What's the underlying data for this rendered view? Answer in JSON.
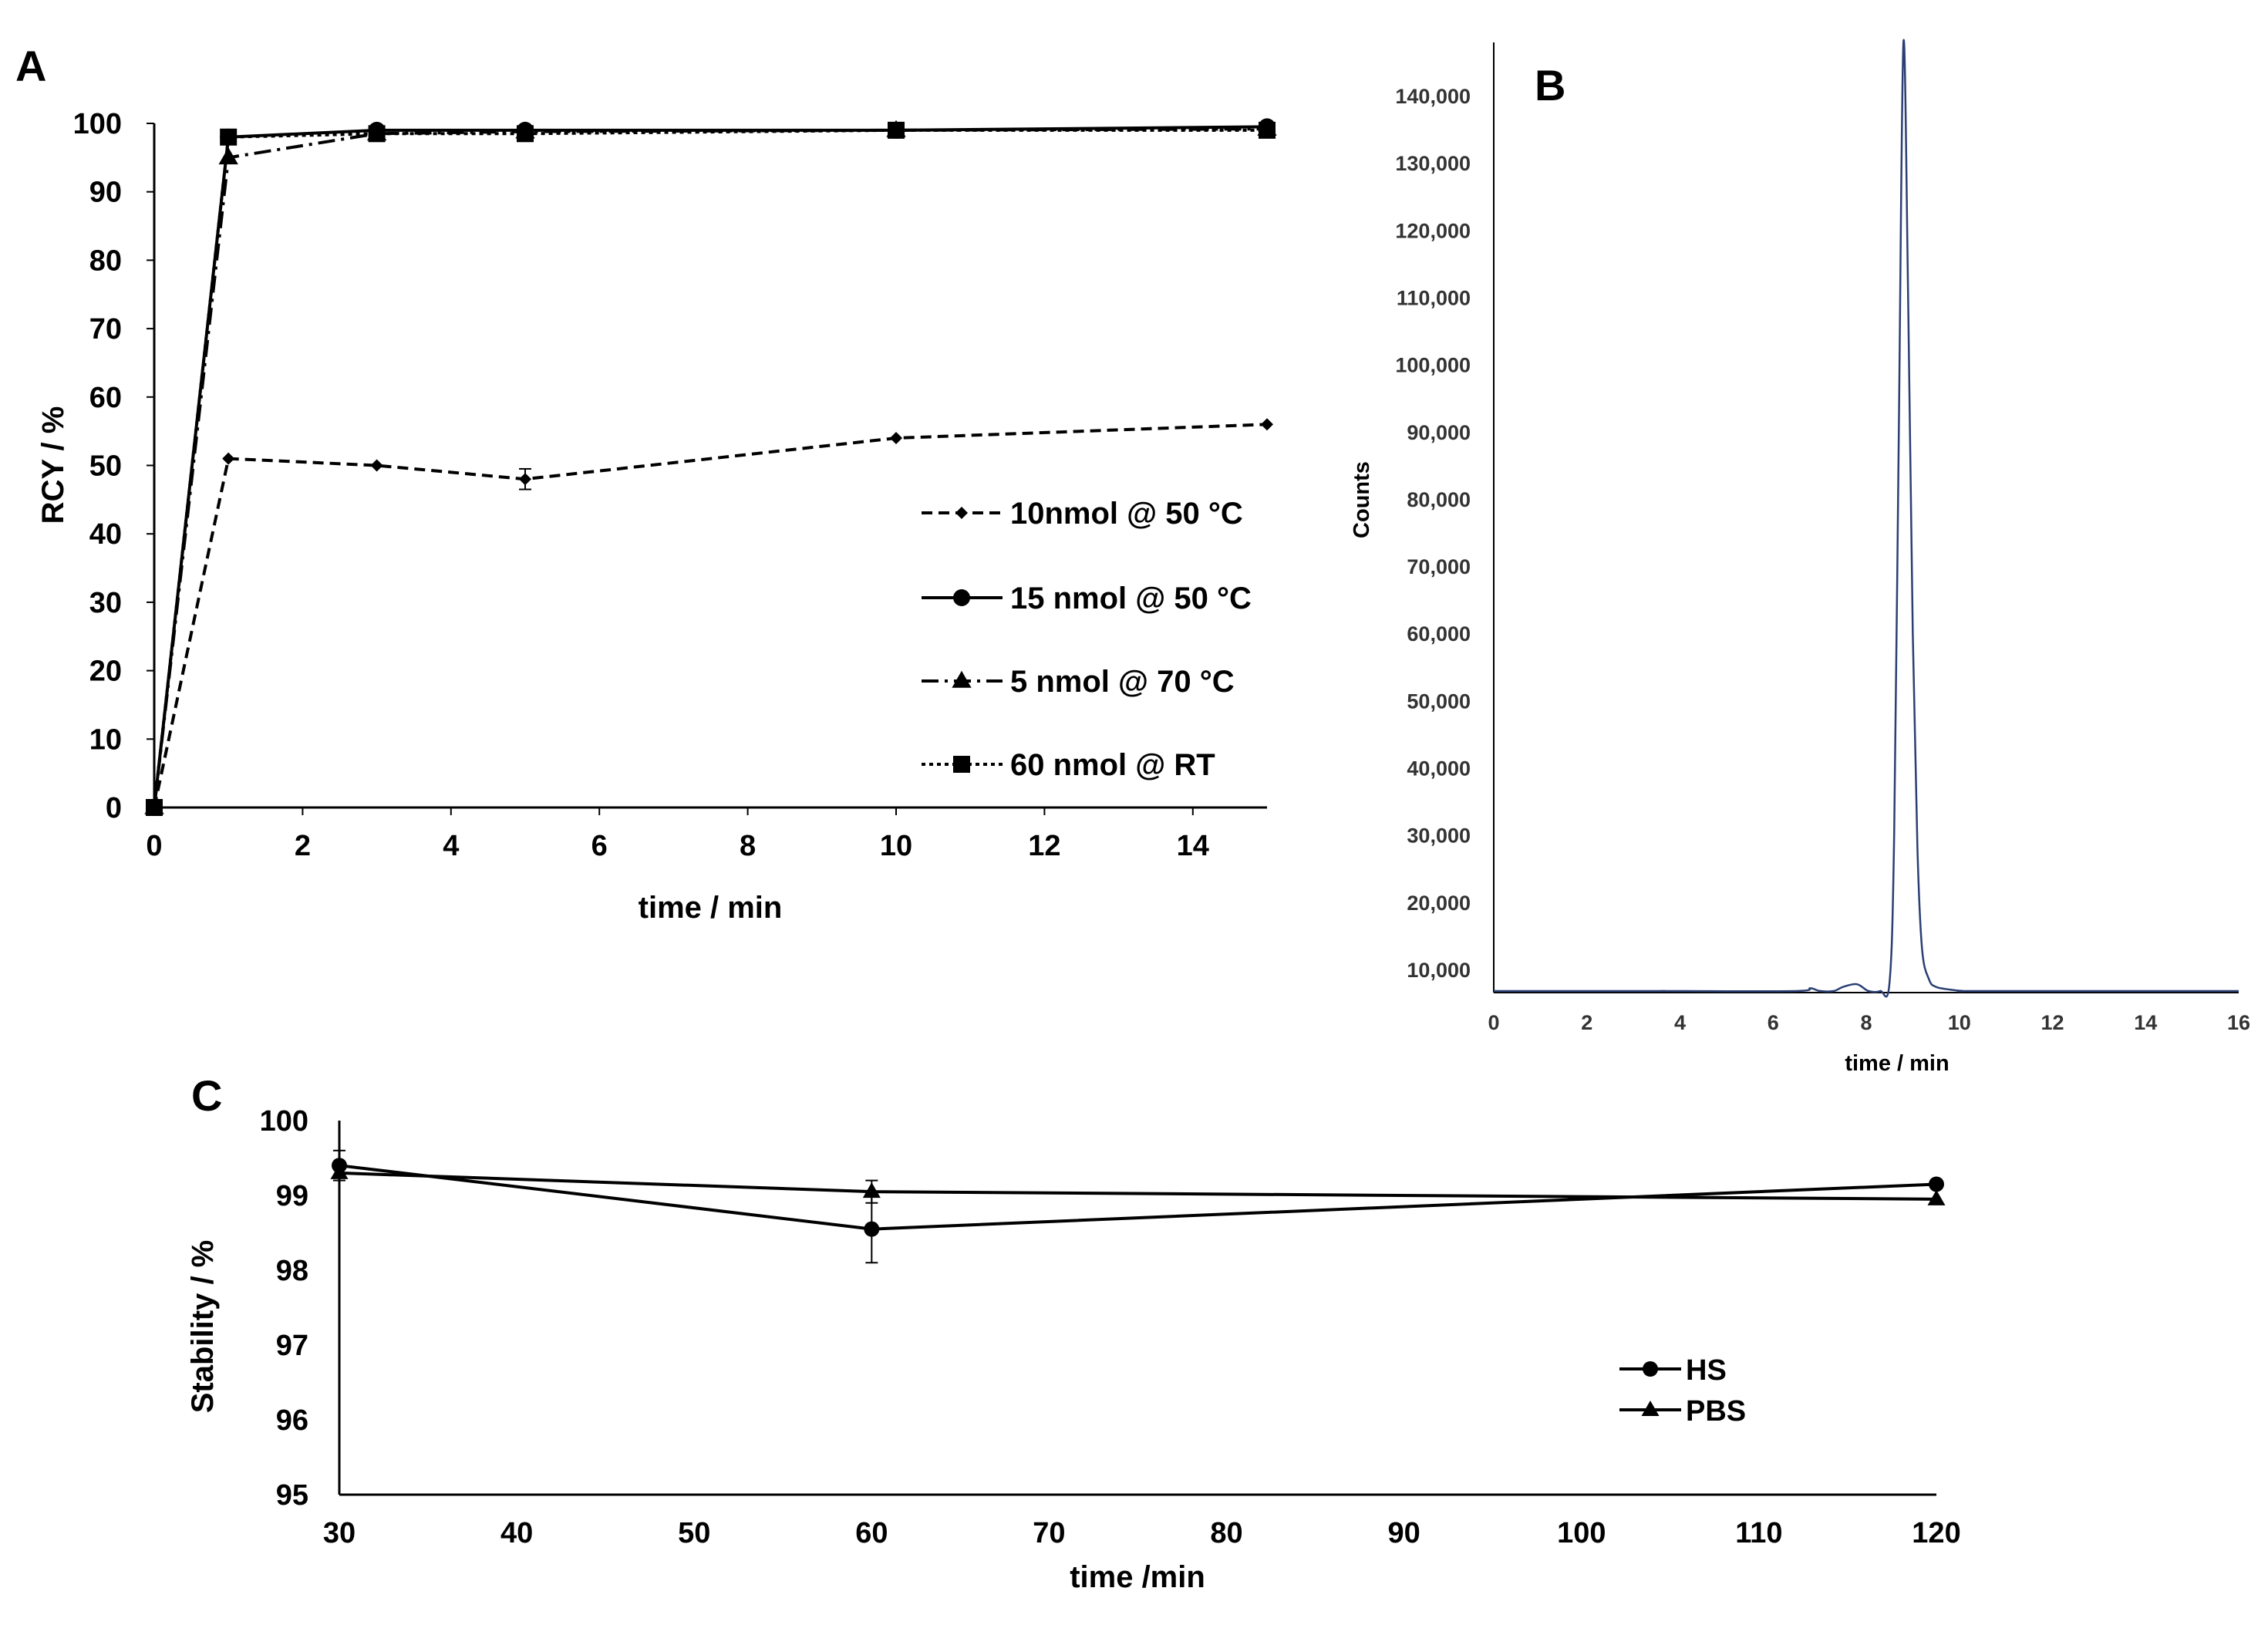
{
  "panels": {
    "a": "A",
    "b": "B",
    "c": "C"
  },
  "chart_data": [
    {
      "id": "A",
      "type": "line",
      "xlabel": "time / min",
      "ylabel": "RCY / %",
      "xlim": [
        0,
        15
      ],
      "ylim": [
        0,
        100
      ],
      "xticks": [
        "0",
        "2",
        "4",
        "6",
        "8",
        "10",
        "12",
        "14"
      ],
      "yticks": [
        "0",
        "10",
        "20",
        "30",
        "40",
        "50",
        "60",
        "70",
        "80",
        "90",
        "100"
      ],
      "legend_position": "center-right",
      "series": [
        {
          "name": "10nmol @ 50 °C",
          "marker": "diamond",
          "dash": "dashed",
          "x": [
            0,
            1,
            3,
            5,
            10,
            15
          ],
          "y": [
            0,
            51,
            50,
            48,
            54,
            56
          ],
          "err": [
            0,
            0,
            0,
            1.5,
            0,
            0
          ]
        },
        {
          "name": "15 nmol @ 50 °C",
          "marker": "circle",
          "dash": "solid",
          "x": [
            0,
            1,
            3,
            5,
            10,
            15
          ],
          "y": [
            0,
            98,
            99,
            99,
            99,
            99.5
          ],
          "err": [
            0,
            0,
            0,
            0,
            0,
            0
          ]
        },
        {
          "name": "5 nmol @ 70 °C",
          "marker": "triangle",
          "dash": "dashdot",
          "x": [
            0,
            1,
            3,
            5,
            10,
            15
          ],
          "y": [
            0,
            95,
            98.5,
            98.8,
            99,
            99.2
          ],
          "err": [
            0,
            0,
            0,
            0,
            0,
            0
          ]
        },
        {
          "name": "60 nmol @ RT",
          "marker": "square",
          "dash": "dotted",
          "x": [
            0,
            1,
            3,
            5,
            10,
            15
          ],
          "y": [
            0,
            98,
            98.5,
            98.5,
            99,
            99
          ],
          "err": [
            0,
            0,
            0,
            0,
            0,
            0
          ]
        }
      ]
    },
    {
      "id": "B",
      "type": "line",
      "xlabel": "time / min",
      "ylabel": "Counts",
      "xlim": [
        0,
        16
      ],
      "ylim": [
        6000,
        148000
      ],
      "xticks": [
        "0",
        "2",
        "4",
        "6",
        "8",
        "10",
        "12",
        "14",
        "16"
      ],
      "yticks": [
        "10,000",
        "20,000",
        "30,000",
        "40,000",
        "50,000",
        "60,000",
        "70,000",
        "80,000",
        "90,000",
        "100,000",
        "110,000",
        "120,000",
        "130,000",
        "140,000"
      ],
      "series": [
        {
          "name": "chromatogram",
          "x": [
            0,
            3.3,
            3.6,
            3.8,
            4.1,
            6.5,
            6.8,
            7.0,
            7.3,
            7.5,
            7.8,
            8.05,
            8.3,
            8.5,
            8.6,
            8.7,
            8.8,
            8.9,
            9.0,
            9.1,
            9.2,
            9.35,
            9.5,
            9.8,
            10.1,
            10.5,
            16
          ],
          "y": [
            6200,
            6200,
            6800,
            6500,
            6200,
            6200,
            7200,
            6800,
            6400,
            7400,
            7800,
            6600,
            6500,
            8000,
            30000,
            90000,
            148000,
            110000,
            60000,
            28000,
            13000,
            8500,
            7400,
            7000,
            6600,
            6300,
            6200
          ]
        }
      ]
    },
    {
      "id": "C",
      "type": "line",
      "xlabel": "time /min",
      "ylabel": "Stability / %",
      "xlim": [
        30,
        120
      ],
      "ylim": [
        95,
        100
      ],
      "xticks": [
        "30",
        "40",
        "50",
        "60",
        "70",
        "80",
        "90",
        "100",
        "110",
        "120"
      ],
      "yticks": [
        "95",
        "96",
        "97",
        "98",
        "99",
        "100"
      ],
      "legend_position": "center-right",
      "series": [
        {
          "name": "HS",
          "marker": "circle",
          "x": [
            30,
            60,
            120
          ],
          "y": [
            99.4,
            98.55,
            99.15
          ],
          "err": [
            0.2,
            0.45,
            0
          ]
        },
        {
          "name": "PBS",
          "marker": "triangle",
          "x": [
            30,
            60,
            120
          ],
          "y": [
            99.3,
            99.05,
            98.95
          ],
          "err": [
            0,
            0.15,
            0
          ]
        }
      ]
    }
  ]
}
